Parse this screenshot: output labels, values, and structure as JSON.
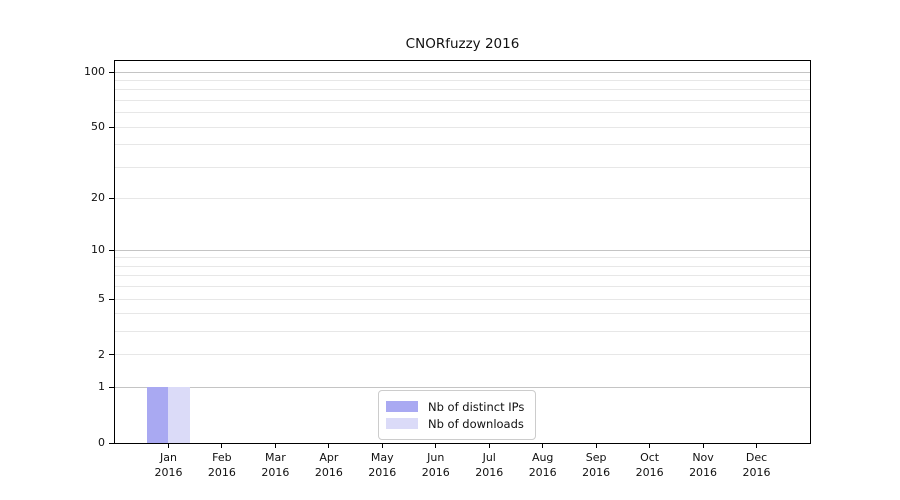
{
  "chart_data": {
    "type": "bar",
    "title": "CNORfuzzy 2016",
    "categories": [
      "Jan",
      "Feb",
      "Mar",
      "Apr",
      "May",
      "Jun",
      "Jul",
      "Aug",
      "Sep",
      "Oct",
      "Nov",
      "Dec"
    ],
    "category_year": "2016",
    "series": [
      {
        "name": "Nb of distinct IPs",
        "color": "#a9a9f2",
        "values": [
          1,
          0,
          0,
          0,
          0,
          0,
          0,
          0,
          0,
          0,
          0,
          0
        ]
      },
      {
        "name": "Nb of downloads",
        "color": "#dbdbf8",
        "values": [
          1,
          0,
          0,
          0,
          0,
          0,
          0,
          0,
          0,
          0,
          0,
          0
        ]
      }
    ],
    "y_scale": "log1p",
    "ylim": [
      0,
      115
    ],
    "y_tick_labels": [
      0,
      1,
      2,
      5,
      10,
      20,
      50,
      100
    ],
    "y_major_gridlines": [
      1,
      10,
      100
    ],
    "y_minor_gridlines": [
      2,
      3,
      4,
      5,
      6,
      7,
      8,
      9,
      20,
      30,
      40,
      50,
      60,
      70,
      80,
      90
    ],
    "grid": {
      "major_color": "#c4c4c4",
      "minor_color": "#e7e7e7"
    },
    "legend_position": "bottom-center"
  }
}
